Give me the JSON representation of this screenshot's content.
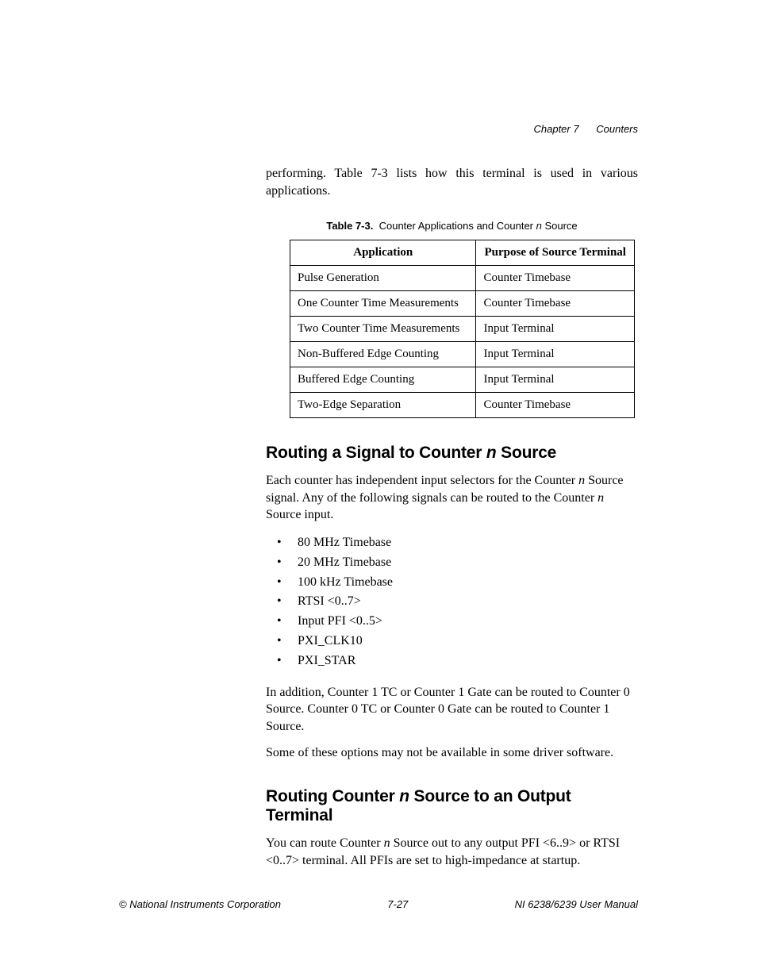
{
  "header": {
    "chapter_label": "Chapter 7",
    "chapter_title": "Counters"
  },
  "intro_paragraph": "performing. Table 7-3 lists how this terminal is used in various applications.",
  "table": {
    "caption_label": "Table 7-3.",
    "caption_text_prefix": "Counter Applications and Counter ",
    "caption_text_italic": "n",
    "caption_text_suffix": " Source",
    "columns": {
      "col1": "Application",
      "col2": "Purpose of Source Terminal"
    },
    "rows": [
      {
        "app": "Pulse Generation",
        "purpose": "Counter Timebase"
      },
      {
        "app": "One Counter Time Measurements",
        "purpose": "Counter Timebase"
      },
      {
        "app": "Two Counter Time Measurements",
        "purpose": "Input Terminal"
      },
      {
        "app": "Non-Buffered Edge Counting",
        "purpose": "Input Terminal"
      },
      {
        "app": "Buffered Edge Counting",
        "purpose": "Input Terminal"
      },
      {
        "app": "Two-Edge Separation",
        "purpose": "Counter Timebase"
      }
    ]
  },
  "section1": {
    "heading_prefix": "Routing a Signal to Counter ",
    "heading_italic": "n",
    "heading_suffix": " Source",
    "para1_part1": "Each counter has independent input selectors for the Counter ",
    "para1_n1": "n",
    "para1_part2": " Source signal. Any of the following signals can be routed to the Counter ",
    "para1_n2": "n",
    "para1_part3": " Source input.",
    "signals": [
      "80 MHz Timebase",
      "20 MHz Timebase",
      "100 kHz Timebase",
      "RTSI <0..7>",
      "Input PFI <0..5>",
      "PXI_CLK10",
      "PXI_STAR"
    ],
    "para2": "In addition, Counter 1 TC or Counter 1 Gate can be routed to Counter 0 Source. Counter 0 TC or Counter 0 Gate can be routed to Counter 1 Source.",
    "para3": "Some of these options may not be available in some driver software."
  },
  "section2": {
    "heading_prefix": "Routing Counter ",
    "heading_italic": "n",
    "heading_suffix": " Source to an Output Terminal",
    "para1_part1": "You can route Counter ",
    "para1_n1": "n",
    "para1_part2": " Source out to any output PFI <6..9> or RTSI <0..7> terminal. All PFIs are set to high-impedance at startup."
  },
  "footer": {
    "left": "© National Instruments Corporation",
    "center": "7-27",
    "right": "NI 6238/6239 User Manual"
  }
}
